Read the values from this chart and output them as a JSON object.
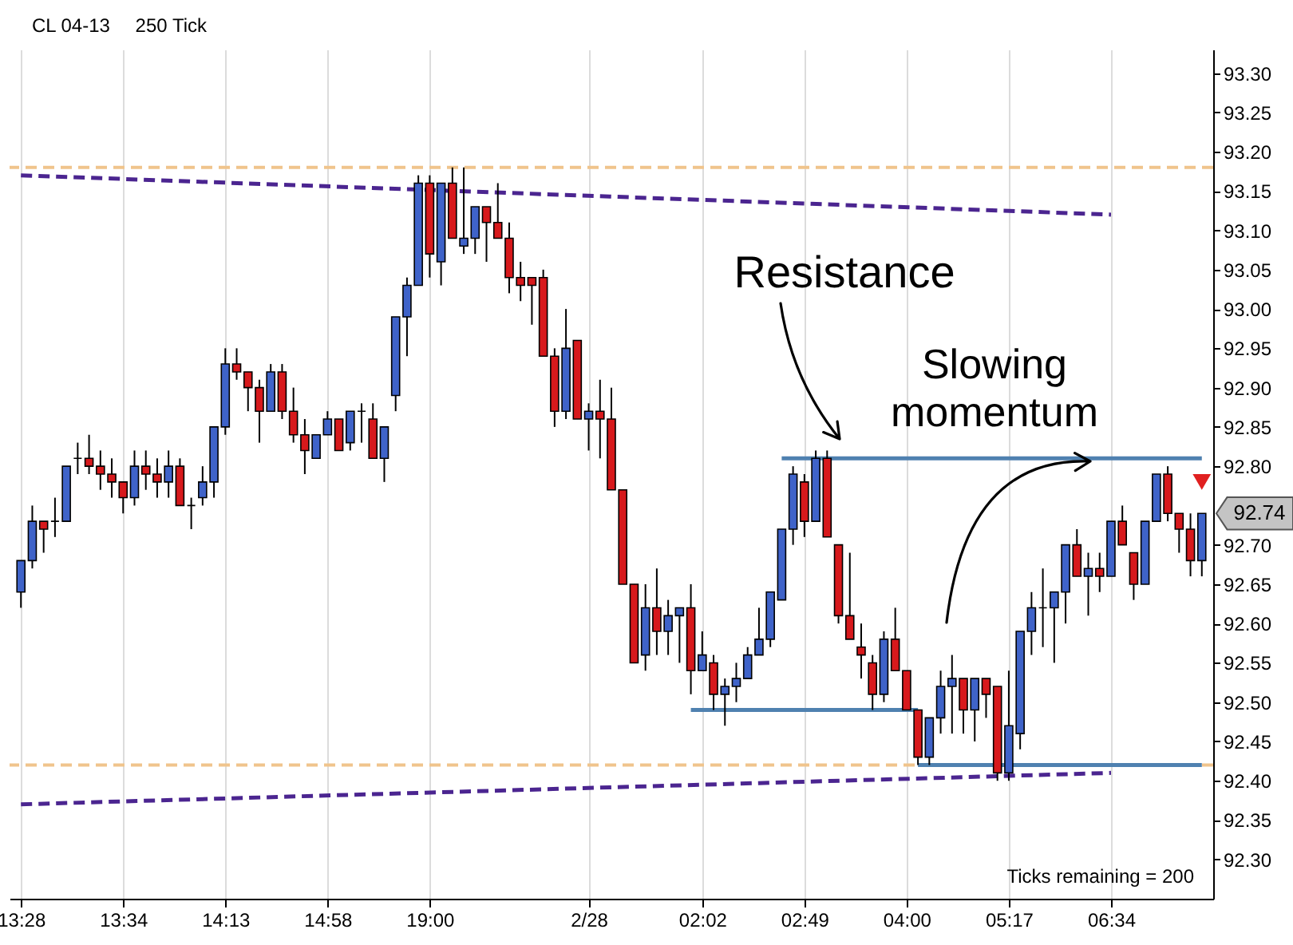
{
  "chart_data": {
    "type": "candlestick",
    "title": "CL 04-13",
    "subtitle": "250 Tick",
    "categories": [
      "13:28",
      null,
      null,
      null,
      null,
      null,
      null,
      null,
      null,
      "13:34",
      null,
      null,
      null,
      null,
      null,
      null,
      null,
      null,
      "14:13",
      null,
      null,
      null,
      null,
      null,
      null,
      null,
      null,
      "14:58",
      null,
      null,
      null,
      null,
      null,
      null,
      null,
      null,
      "19:00",
      null,
      null,
      null,
      null,
      null,
      null,
      null,
      null,
      null,
      null,
      null,
      null,
      null,
      "2/28",
      null,
      null,
      null,
      null,
      null,
      null,
      null,
      null,
      null,
      "02:02",
      null,
      null,
      null,
      null,
      null,
      null,
      null,
      null,
      "02:49",
      null,
      null,
      null,
      null,
      null,
      null,
      null,
      null,
      "04:00",
      null,
      null,
      null,
      null,
      null,
      null,
      null,
      null,
      "05:17",
      null,
      null,
      null,
      null,
      null,
      null,
      null,
      null,
      "06:34",
      null,
      null,
      null,
      null,
      null,
      null,
      null,
      null
    ],
    "ohlc": [
      [
        92.64,
        92.68,
        92.62,
        92.68
      ],
      [
        92.68,
        92.75,
        92.67,
        92.73
      ],
      [
        92.73,
        92.73,
        92.69,
        92.72
      ],
      [
        92.73,
        92.76,
        92.71,
        92.73
      ],
      [
        92.73,
        92.8,
        92.73,
        92.8
      ],
      [
        92.81,
        92.83,
        92.79,
        92.81
      ],
      [
        92.81,
        92.84,
        92.79,
        92.8
      ],
      [
        92.8,
        92.82,
        92.77,
        92.79
      ],
      [
        92.79,
        92.81,
        92.76,
        92.78
      ],
      [
        92.78,
        92.78,
        92.74,
        92.76
      ],
      [
        92.76,
        92.82,
        92.75,
        92.8
      ],
      [
        92.8,
        92.82,
        92.77,
        92.79
      ],
      [
        92.79,
        92.81,
        92.76,
        92.78
      ],
      [
        92.78,
        92.82,
        92.76,
        92.8
      ],
      [
        92.8,
        92.81,
        92.75,
        92.75
      ],
      [
        92.75,
        92.76,
        92.72,
        92.75
      ],
      [
        92.76,
        92.8,
        92.75,
        92.78
      ],
      [
        92.78,
        92.85,
        92.76,
        92.85
      ],
      [
        92.85,
        92.95,
        92.84,
        92.93
      ],
      [
        92.93,
        92.95,
        92.91,
        92.92
      ],
      [
        92.92,
        92.92,
        92.87,
        92.9
      ],
      [
        92.9,
        92.91,
        92.83,
        92.87
      ],
      [
        92.87,
        92.93,
        92.87,
        92.92
      ],
      [
        92.92,
        92.93,
        92.86,
        92.87
      ],
      [
        92.87,
        92.9,
        92.83,
        92.84
      ],
      [
        92.84,
        92.86,
        92.79,
        92.82
      ],
      [
        92.81,
        92.84,
        92.81,
        92.84
      ],
      [
        92.84,
        92.87,
        92.84,
        92.86
      ],
      [
        92.86,
        92.86,
        92.82,
        92.82
      ],
      [
        92.83,
        92.87,
        92.82,
        92.87
      ],
      [
        92.87,
        92.88,
        92.83,
        92.87
      ],
      [
        92.86,
        92.88,
        92.81,
        92.81
      ],
      [
        92.81,
        92.85,
        92.78,
        92.85
      ],
      [
        92.89,
        92.99,
        92.87,
        92.99
      ],
      [
        92.99,
        93.04,
        92.94,
        93.03
      ],
      [
        93.03,
        93.17,
        93.03,
        93.16
      ],
      [
        93.16,
        93.17,
        93.04,
        93.07
      ],
      [
        93.06,
        93.16,
        93.03,
        93.16
      ],
      [
        93.16,
        93.18,
        93.09,
        93.09
      ],
      [
        93.08,
        93.18,
        93.07,
        93.09
      ],
      [
        93.09,
        93.13,
        93.07,
        93.13
      ],
      [
        93.13,
        93.13,
        93.06,
        93.11
      ],
      [
        93.11,
        93.16,
        93.09,
        93.09
      ],
      [
        93.09,
        93.11,
        93.02,
        93.04
      ],
      [
        93.04,
        93.06,
        93.01,
        93.03
      ],
      [
        93.04,
        93.04,
        92.98,
        93.03
      ],
      [
        93.04,
        93.05,
        92.94,
        92.94
      ],
      [
        92.94,
        92.95,
        92.85,
        92.87
      ],
      [
        92.87,
        93.0,
        92.86,
        92.95
      ],
      [
        92.96,
        92.96,
        92.86,
        92.86
      ],
      [
        92.86,
        92.88,
        92.82,
        92.87
      ],
      [
        92.87,
        92.91,
        92.81,
        92.86
      ],
      [
        92.86,
        92.9,
        92.77,
        92.77
      ],
      [
        92.77,
        92.77,
        92.65,
        92.65
      ],
      [
        92.65,
        92.65,
        92.55,
        92.55
      ],
      [
        92.56,
        92.65,
        92.54,
        92.62
      ],
      [
        92.62,
        92.67,
        92.56,
        92.59
      ],
      [
        92.59,
        92.63,
        92.56,
        92.61
      ],
      [
        92.61,
        92.62,
        92.55,
        92.62
      ],
      [
        92.62,
        92.65,
        92.51,
        92.54
      ],
      [
        92.54,
        92.59,
        92.54,
        92.56
      ],
      [
        92.55,
        92.56,
        92.49,
        92.51
      ],
      [
        92.51,
        92.53,
        92.47,
        92.52
      ],
      [
        92.52,
        92.55,
        92.5,
        92.53
      ],
      [
        92.53,
        92.57,
        92.53,
        92.56
      ],
      [
        92.56,
        92.62,
        92.56,
        92.58
      ],
      [
        92.58,
        92.64,
        92.57,
        92.64
      ],
      [
        92.63,
        92.72,
        92.63,
        92.72
      ],
      [
        92.72,
        92.8,
        92.7,
        92.79
      ],
      [
        92.78,
        92.79,
        92.71,
        92.73
      ],
      [
        92.73,
        92.82,
        92.73,
        92.81
      ],
      [
        92.81,
        92.82,
        92.71,
        92.71
      ],
      [
        92.7,
        92.7,
        92.6,
        92.61
      ],
      [
        92.61,
        92.69,
        92.58,
        92.58
      ],
      [
        92.57,
        92.6,
        92.53,
        92.56
      ],
      [
        92.55,
        92.56,
        92.49,
        92.51
      ],
      [
        92.51,
        92.59,
        92.5,
        92.58
      ],
      [
        92.58,
        92.62,
        92.54,
        92.54
      ],
      [
        92.54,
        92.54,
        92.49,
        92.49
      ],
      [
        92.49,
        92.49,
        92.42,
        92.43
      ],
      [
        92.43,
        92.48,
        92.42,
        92.48
      ],
      [
        92.48,
        92.54,
        92.46,
        92.52
      ],
      [
        92.52,
        92.56,
        92.46,
        92.53
      ],
      [
        92.53,
        92.53,
        92.46,
        92.49
      ],
      [
        92.49,
        92.53,
        92.45,
        92.53
      ],
      [
        92.53,
        92.53,
        92.48,
        92.51
      ],
      [
        92.52,
        92.52,
        92.4,
        92.41
      ],
      [
        92.41,
        92.54,
        92.4,
        92.47
      ],
      [
        92.46,
        92.59,
        92.44,
        92.59
      ],
      [
        92.59,
        92.64,
        92.56,
        92.62
      ],
      [
        92.62,
        92.67,
        92.57,
        92.62
      ],
      [
        92.62,
        92.64,
        92.55,
        92.64
      ],
      [
        92.64,
        92.7,
        92.6,
        92.7
      ],
      [
        92.7,
        92.72,
        92.66,
        92.66
      ],
      [
        92.66,
        92.69,
        92.61,
        92.67
      ],
      [
        92.67,
        92.69,
        92.64,
        92.66
      ],
      [
        92.66,
        92.73,
        92.66,
        92.73
      ],
      [
        92.73,
        92.75,
        92.7,
        92.7
      ],
      [
        92.69,
        92.69,
        92.63,
        92.65
      ],
      [
        92.65,
        92.73,
        92.65,
        92.73
      ],
      [
        92.73,
        92.79,
        92.73,
        92.79
      ],
      [
        92.79,
        92.8,
        92.73,
        92.74
      ],
      [
        92.74,
        92.74,
        92.69,
        92.72
      ],
      [
        92.72,
        92.74,
        92.66,
        92.68
      ],
      [
        92.68,
        92.74,
        92.66,
        92.74
      ]
    ],
    "colors": [
      "#3f63c9",
      "#3f63c9",
      "#d7191c",
      "#000000",
      "#3f63c9",
      "#000000",
      "#d7191c",
      "#d7191c",
      "#d7191c",
      "#d7191c",
      "#3f63c9",
      "#d7191c",
      "#d7191c",
      "#3f63c9",
      "#d7191c",
      "#000000",
      "#3f63c9",
      "#3f63c9",
      "#3f63c9",
      "#d7191c",
      "#d7191c",
      "#d7191c",
      "#3f63c9",
      "#d7191c",
      "#d7191c",
      "#d7191c",
      "#3f63c9",
      "#3f63c9",
      "#d7191c",
      "#3f63c9",
      "#000000",
      "#d7191c",
      "#3f63c9",
      "#3f63c9",
      "#3f63c9",
      "#3f63c9",
      "#d7191c",
      "#3f63c9",
      "#d7191c",
      "#3f63c9",
      "#3f63c9",
      "#d7191c",
      "#d7191c",
      "#d7191c",
      "#d7191c",
      "#d7191c",
      "#d7191c",
      "#d7191c",
      "#3f63c9",
      "#d7191c",
      "#3f63c9",
      "#d7191c",
      "#d7191c",
      "#d7191c",
      "#d7191c",
      "#3f63c9",
      "#d7191c",
      "#3f63c9",
      "#3f63c9",
      "#d7191c",
      "#3f63c9",
      "#d7191c",
      "#3f63c9",
      "#3f63c9",
      "#3f63c9",
      "#3f63c9",
      "#3f63c9",
      "#3f63c9",
      "#3f63c9",
      "#d7191c",
      "#3f63c9",
      "#d7191c",
      "#d7191c",
      "#d7191c",
      "#d7191c",
      "#d7191c",
      "#3f63c9",
      "#d7191c",
      "#d7191c",
      "#d7191c",
      "#3f63c9",
      "#3f63c9",
      "#3f63c9",
      "#d7191c",
      "#3f63c9",
      "#d7191c",
      "#d7191c",
      "#3f63c9",
      "#3f63c9",
      "#3f63c9",
      "#000000",
      "#3f63c9",
      "#3f63c9",
      "#d7191c",
      "#3f63c9",
      "#d7191c",
      "#3f63c9",
      "#d7191c",
      "#d7191c",
      "#3f63c9",
      "#3f63c9",
      "#d7191c",
      "#d7191c",
      "#d7191c",
      "#3f63c9"
    ],
    "ylim": [
      92.25,
      93.33
    ],
    "yticks": [
      {
        "value": 92.3,
        "label": "92.30"
      },
      {
        "value": 92.35,
        "label": "92.35"
      },
      {
        "value": 92.4,
        "label": "92.40"
      },
      {
        "value": 92.45,
        "label": "92.45"
      },
      {
        "value": 92.5,
        "label": "92.50"
      },
      {
        "value": 92.55,
        "label": "92.55"
      },
      {
        "value": 92.6,
        "label": "92.60"
      },
      {
        "value": 92.65,
        "label": "92.65"
      },
      {
        "value": 92.7,
        "label": "92.70"
      },
      {
        "value": 92.8,
        "label": "92.80"
      },
      {
        "value": 92.85,
        "label": "92.85"
      },
      {
        "value": 92.9,
        "label": "92.90"
      },
      {
        "value": 92.95,
        "label": "92.95"
      },
      {
        "value": 93.0,
        "label": "93.00"
      },
      {
        "value": 93.05,
        "label": "93.05"
      },
      {
        "value": 93.1,
        "label": "93.10"
      },
      {
        "value": 93.15,
        "label": "93.15"
      },
      {
        "value": 93.2,
        "label": "93.20"
      },
      {
        "value": 93.25,
        "label": "93.25"
      },
      {
        "value": 93.3,
        "label": "93.30"
      }
    ],
    "grid": "x",
    "series": [
      {
        "type": "line",
        "x": [
          "13:28",
          "06:34"
        ],
        "values": [
          93.17,
          93.12
        ],
        "color": "#4b2590",
        "line_style": "dashed"
      },
      {
        "type": "line",
        "x": [
          "13:28",
          "06:34"
        ],
        "values": [
          92.37,
          92.41
        ],
        "color": "#4b2590",
        "line_style": "dashed"
      },
      {
        "type": "line",
        "color": "#4f81b0",
        "line_style": "solid",
        "values": [
          null,
          null,
          null,
          null,
          null,
          null,
          null,
          null,
          null,
          null,
          null,
          null,
          null,
          null,
          null,
          null,
          null,
          null,
          null,
          null,
          null,
          null,
          null,
          null,
          null,
          null,
          null,
          null,
          null,
          null,
          null,
          null,
          null,
          null,
          null,
          null,
          null,
          null,
          null,
          null,
          null,
          null,
          null,
          null,
          null,
          null,
          null,
          null,
          null,
          null,
          null,
          null,
          null,
          null,
          null,
          null,
          null,
          null,
          null,
          null,
          null,
          null,
          null,
          null,
          null,
          null,
          null,
          92.81,
          92.81,
          92.81,
          92.81,
          92.81,
          92.81,
          92.81,
          92.81,
          92.81,
          92.81,
          92.81,
          92.81,
          92.81,
          92.81,
          92.81,
          92.81,
          92.81,
          92.81,
          92.81,
          92.81,
          92.81,
          92.81,
          92.81,
          92.81,
          92.81,
          92.81,
          92.81,
          92.81,
          92.81,
          92.81,
          92.81,
          92.81,
          92.81,
          92.81,
          92.81,
          92.81,
          92.81,
          92.81
        ]
      },
      {
        "type": "line",
        "color": "#4f81b0",
        "line_style": "solid",
        "values": [
          null,
          null,
          null,
          null,
          null,
          null,
          null,
          null,
          null,
          null,
          null,
          null,
          null,
          null,
          null,
          null,
          null,
          null,
          null,
          null,
          null,
          null,
          null,
          null,
          null,
          null,
          null,
          null,
          null,
          null,
          null,
          null,
          null,
          null,
          null,
          null,
          null,
          null,
          null,
          null,
          null,
          null,
          null,
          null,
          null,
          null,
          null,
          null,
          null,
          null,
          null,
          null,
          null,
          null,
          null,
          null,
          null,
          null,
          null,
          92.49,
          92.49,
          92.49,
          92.49,
          92.49,
          92.49,
          92.49,
          92.49,
          92.49,
          92.49,
          92.49,
          92.49,
          92.49,
          92.49,
          92.49,
          92.49,
          92.49,
          92.49,
          92.49,
          92.49,
          92.49,
          null,
          null,
          null,
          null,
          null,
          null,
          null,
          null,
          null,
          null,
          null,
          null,
          null,
          null,
          null,
          null,
          null,
          null,
          null,
          null,
          null,
          null,
          null,
          null,
          null
        ]
      },
      {
        "type": "line",
        "color": "#4f81b0",
        "line_style": "solid",
        "values": [
          null,
          null,
          null,
          null,
          null,
          null,
          null,
          null,
          null,
          null,
          null,
          null,
          null,
          null,
          null,
          null,
          null,
          null,
          null,
          null,
          null,
          null,
          null,
          null,
          null,
          null,
          null,
          null,
          null,
          null,
          null,
          null,
          null,
          null,
          null,
          null,
          null,
          null,
          null,
          null,
          null,
          null,
          null,
          null,
          null,
          null,
          null,
          null,
          null,
          null,
          null,
          null,
          null,
          null,
          null,
          null,
          null,
          null,
          null,
          null,
          null,
          null,
          null,
          null,
          null,
          null,
          null,
          null,
          null,
          null,
          null,
          null,
          null,
          null,
          null,
          null,
          null,
          null,
          null,
          92.42,
          92.42,
          92.42,
          92.42,
          92.42,
          92.42,
          92.42,
          92.42,
          92.42,
          92.42,
          92.42,
          92.42,
          92.42,
          92.42,
          92.42,
          92.42,
          92.42,
          92.42,
          92.42,
          92.42,
          92.42,
          92.42,
          92.42,
          92.42,
          92.42,
          92.42
        ]
      },
      {
        "type": "scatter",
        "color": "#e02020",
        "marker": "triangle",
        "values": [
          null,
          null,
          null,
          null,
          null,
          null,
          null,
          null,
          null,
          null,
          null,
          null,
          null,
          null,
          null,
          null,
          null,
          null,
          null,
          null,
          null,
          null,
          null,
          null,
          null,
          null,
          null,
          null,
          null,
          null,
          null,
          null,
          null,
          null,
          null,
          null,
          null,
          null,
          null,
          null,
          null,
          null,
          null,
          null,
          null,
          null,
          null,
          null,
          null,
          null,
          null,
          null,
          null,
          null,
          null,
          null,
          null,
          null,
          null,
          null,
          null,
          null,
          null,
          null,
          null,
          null,
          null,
          null,
          null,
          null,
          null,
          null,
          null,
          null,
          null,
          null,
          null,
          null,
          null,
          null,
          null,
          null,
          null,
          null,
          null,
          null,
          null,
          null,
          null,
          null,
          null,
          null,
          null,
          null,
          null,
          null,
          null,
          null,
          null,
          null,
          null,
          null,
          null,
          null,
          92.78
        ]
      }
    ],
    "ref_lines": [
      {
        "axis": "y",
        "value": 93.18,
        "color": "#f0c48c",
        "line_style": "dashed"
      },
      {
        "axis": "y",
        "value": 92.42,
        "color": "#f0c48c",
        "line_style": "dashed"
      }
    ],
    "annotations": [
      "Resistance",
      "Slowing momentum",
      "Ticks remaining = 200",
      "92.74"
    ]
  }
}
